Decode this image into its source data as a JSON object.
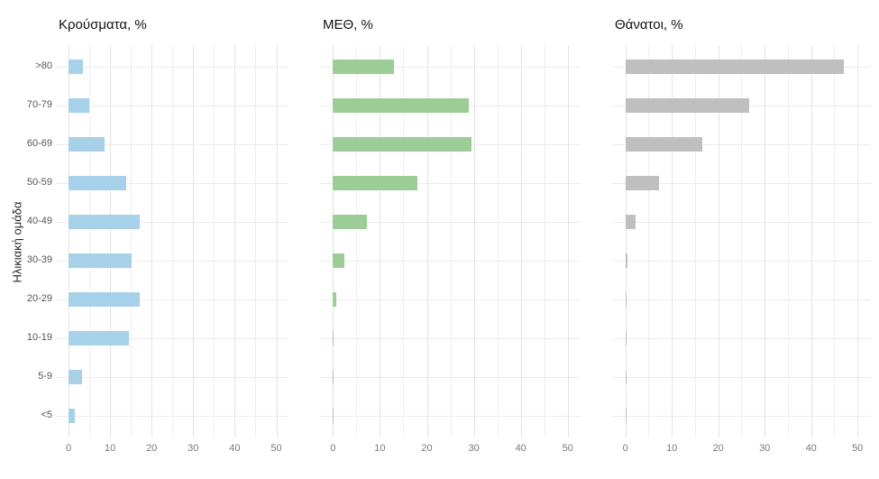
{
  "chart_data": {
    "type": "bar",
    "orientation": "horizontal",
    "y_axis_title": "Ηλικιακή ομάδα",
    "categories": [
      ">80",
      "70-79",
      "60-69",
      "50-59",
      "40-49",
      "30-39",
      "20-29",
      "10-19",
      "5-9",
      "<5"
    ],
    "x_tick_labels": [
      "0",
      "10",
      "20",
      "30",
      "40",
      "50"
    ],
    "x_ticks": [
      0,
      10,
      20,
      30,
      40,
      50
    ],
    "xlim": [
      0,
      53
    ],
    "grid_minor_step": 5,
    "grid": "on",
    "legend": "none",
    "panels": [
      {
        "title": "Κρούσματα, %",
        "color": "#A6D1E8",
        "values": [
          3.5,
          5.0,
          8.7,
          13.9,
          17.2,
          15.2,
          17.2,
          14.6,
          3.3,
          1.6
        ]
      },
      {
        "title": "ΜΕΘ, %",
        "color": "#9DCD96",
        "values": [
          13.0,
          28.9,
          29.5,
          18.0,
          7.2,
          2.4,
          0.8,
          0.2,
          0.1,
          0.2
        ]
      },
      {
        "title": "Θάνατοι, %",
        "color": "#BFBFBF",
        "values": [
          47.0,
          26.7,
          16.5,
          7.3,
          2.2,
          0.5,
          0.1,
          0.15,
          0.02,
          0.1
        ]
      }
    ]
  }
}
